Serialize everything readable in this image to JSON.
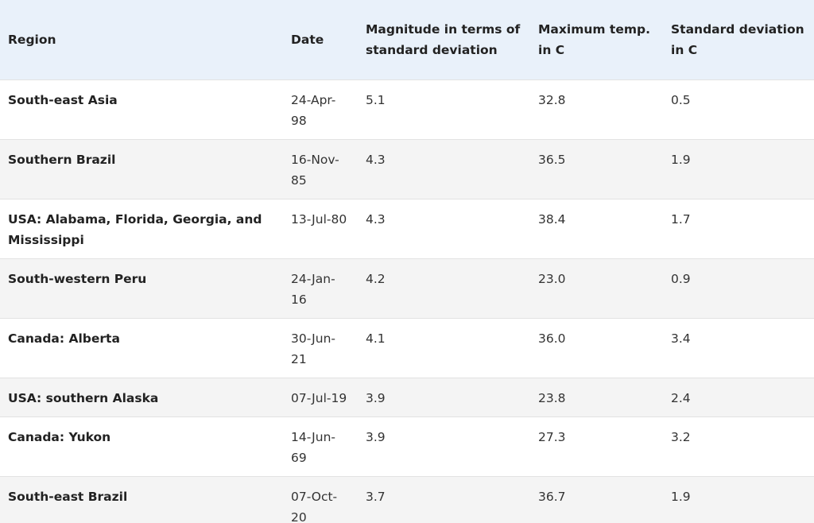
{
  "table": {
    "headers": [
      "Region",
      "Date",
      "Magnitude in terms of standard deviation",
      "Maximum temp. in C",
      "Standard deviation in C"
    ],
    "rows": [
      [
        "South-east Asia",
        "24-Apr-98",
        "5.1",
        "32.8",
        "0.5"
      ],
      [
        "Southern Brazil",
        "16-Nov-85",
        "4.3",
        "36.5",
        "1.9"
      ],
      [
        "USA: Alabama, Florida, Georgia, and Mississippi",
        "13-Jul-80",
        "4.3",
        "38.4",
        "1.7"
      ],
      [
        "South-western Peru",
        "24-Jan-16",
        "4.2",
        "23.0",
        "0.9"
      ],
      [
        "Canada: Alberta",
        "30-Jun-21",
        "4.1",
        "36.0",
        "3.4"
      ],
      [
        "USA: southern Alaska",
        "07-Jul-19",
        "3.9",
        "23.8",
        "2.4"
      ],
      [
        "Canada: Yukon",
        "14-Jun-69",
        "3.9",
        "27.3",
        "3.2"
      ],
      [
        "South-east Brazil",
        "07-Oct-20",
        "3.7",
        "36.7",
        "1.9"
      ]
    ]
  },
  "colors": {
    "header_bg": "#e9f1fa",
    "zebra_bg": "#f4f4f4",
    "border": "#e2e2e2"
  }
}
